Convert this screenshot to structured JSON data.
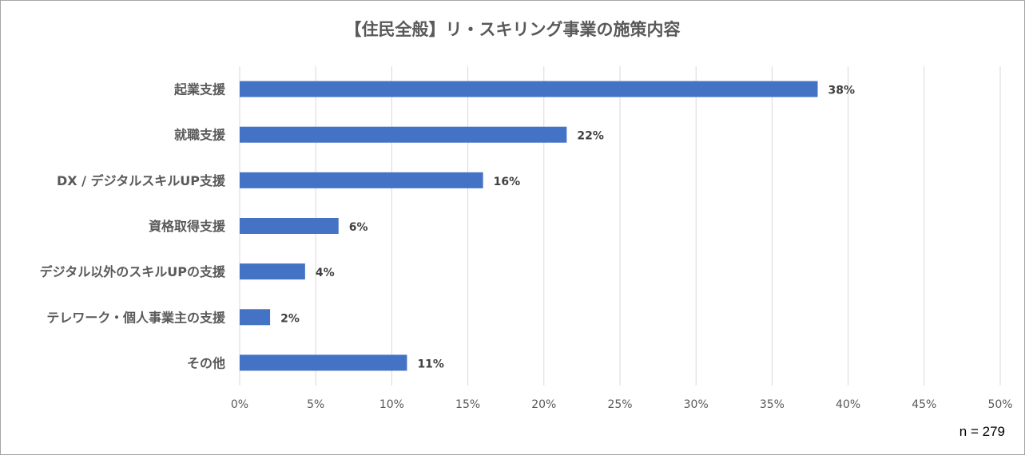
{
  "chart_data": {
    "type": "bar",
    "orientation": "horizontal",
    "title": "【住民全般】リ・スキリング事業の施策内容",
    "categories": [
      "起業支援",
      "就職支援",
      "DX / デジタルスキルUP支援",
      "資格取得支援",
      "デジタル以外のスキルUPの支援",
      "テレワーク・個人事業主の支援",
      "その他"
    ],
    "values": [
      38,
      21.5,
      16,
      6.5,
      4.3,
      2,
      11
    ],
    "data_labels": [
      "38%",
      "22%",
      "16%",
      "6%",
      "4%",
      "2%",
      "11%"
    ],
    "xlim": [
      0,
      50
    ],
    "x_ticks": [
      0,
      5,
      10,
      15,
      20,
      25,
      30,
      35,
      40,
      45,
      50
    ],
    "x_tick_labels": [
      "0%",
      "5%",
      "10%",
      "15%",
      "20%",
      "25%",
      "30%",
      "35%",
      "40%",
      "45%",
      "50%"
    ],
    "grid": true,
    "bar_color": "#4472c4",
    "grid_color": "#d9d9d9",
    "note": "n = 279"
  }
}
